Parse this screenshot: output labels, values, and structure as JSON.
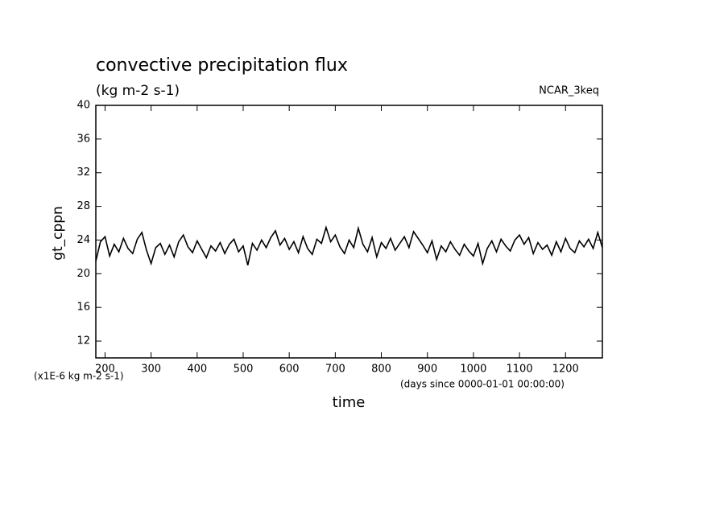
{
  "chart_data": {
    "type": "line",
    "title": "convective precipitation flux",
    "subtitle": "(kg m-2 s-1)",
    "annotation": "NCAR_3keq",
    "y_label": "gt_cppn",
    "y_units": "(x1E-6 kg m-2 s-1)",
    "x_label": "time",
    "x_units": "(days since 0000-01-01 00:00:00)",
    "xlim": [
      180,
      1280
    ],
    "ylim": [
      10,
      40
    ],
    "xticks": [
      200,
      300,
      400,
      500,
      600,
      700,
      800,
      900,
      1000,
      1100,
      1200
    ],
    "yticks": [
      12,
      16,
      20,
      24,
      28,
      32,
      36,
      40
    ],
    "grid": false,
    "x": [
      180,
      190,
      200,
      210,
      220,
      230,
      240,
      250,
      260,
      270,
      280,
      290,
      300,
      310,
      320,
      330,
      340,
      350,
      360,
      370,
      380,
      390,
      400,
      410,
      420,
      430,
      440,
      450,
      460,
      470,
      480,
      490,
      500,
      510,
      520,
      530,
      540,
      550,
      560,
      570,
      580,
      590,
      600,
      610,
      620,
      630,
      640,
      650,
      660,
      670,
      680,
      690,
      700,
      710,
      720,
      730,
      740,
      750,
      760,
      770,
      780,
      790,
      800,
      810,
      820,
      830,
      840,
      850,
      860,
      870,
      880,
      890,
      900,
      910,
      920,
      930,
      940,
      950,
      960,
      970,
      980,
      990,
      1000,
      1010,
      1020,
      1030,
      1040,
      1050,
      1060,
      1070,
      1080,
      1090,
      1100,
      1110,
      1120,
      1130,
      1140,
      1150,
      1160,
      1170,
      1180,
      1190,
      1200,
      1210,
      1220,
      1230,
      1240,
      1250,
      1260,
      1270,
      1280
    ],
    "series": [
      {
        "color": "#000000",
        "values": [
          21.5,
          23.8,
          24.4,
          22.1,
          23.5,
          22.6,
          24.2,
          23.0,
          22.4,
          24.1,
          24.9,
          22.8,
          21.2,
          23.1,
          23.6,
          22.3,
          23.4,
          22.0,
          23.8,
          24.6,
          23.2,
          22.5,
          23.9,
          22.9,
          21.9,
          23.3,
          22.7,
          23.7,
          22.4,
          23.5,
          24.1,
          22.6,
          23.3,
          21.0,
          23.6,
          22.8,
          24.0,
          23.1,
          24.3,
          25.1,
          23.4,
          24.2,
          22.9,
          23.8,
          22.5,
          24.4,
          23.0,
          22.3,
          24.1,
          23.6,
          25.5,
          23.8,
          24.6,
          23.2,
          22.4,
          24.0,
          23.1,
          25.4,
          23.5,
          22.6,
          24.3,
          22.0,
          23.7,
          23.0,
          24.2,
          22.8,
          23.6,
          24.4,
          23.1,
          25.0,
          24.2,
          23.4,
          22.5,
          23.9,
          21.7,
          23.3,
          22.6,
          23.8,
          22.9,
          22.2,
          23.5,
          22.7,
          22.1,
          23.6,
          21.2,
          23.0,
          23.9,
          22.6,
          24.1,
          23.3,
          22.7,
          24.0,
          24.6,
          23.5,
          24.3,
          22.4,
          23.7,
          22.9,
          23.4,
          22.2,
          23.8,
          22.6,
          24.2,
          23.0,
          22.5,
          23.9,
          23.2,
          24.1,
          23.0,
          24.9,
          23.1
        ]
      }
    ]
  }
}
